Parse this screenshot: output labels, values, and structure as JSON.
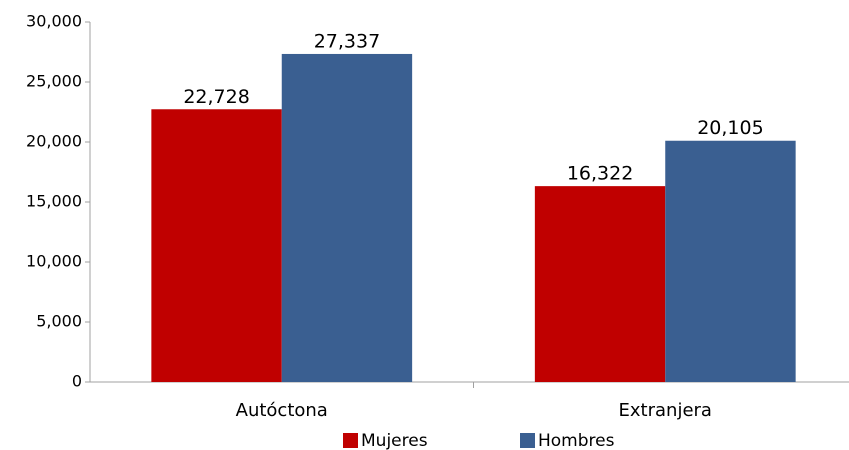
{
  "chart_data": {
    "type": "bar",
    "categories": [
      "Autóctona",
      "Extranjera"
    ],
    "series": [
      {
        "name": "Mujeres",
        "color": "#c00000",
        "values": [
          22728,
          16322
        ],
        "value_labels": [
          "22,728",
          "16,322"
        ]
      },
      {
        "name": "Hombres",
        "color": "#3a5f91",
        "values": [
          27337,
          20105
        ],
        "value_labels": [
          "27,337",
          "20,105"
        ]
      }
    ],
    "ylim": [
      0,
      30000
    ],
    "yticks": [
      0,
      {
        "value": 5000,
        "label": "5,000"
      },
      {
        "value": 10000,
        "label": "10,000"
      },
      {
        "value": 15000,
        "label": "15,000"
      },
      {
        "value": 20000,
        "label": "20,000"
      },
      {
        "value": 25000,
        "label": "25,000"
      },
      {
        "value": 30000,
        "label": "30,000"
      }
    ],
    "grid": false,
    "legend": "bottom"
  }
}
